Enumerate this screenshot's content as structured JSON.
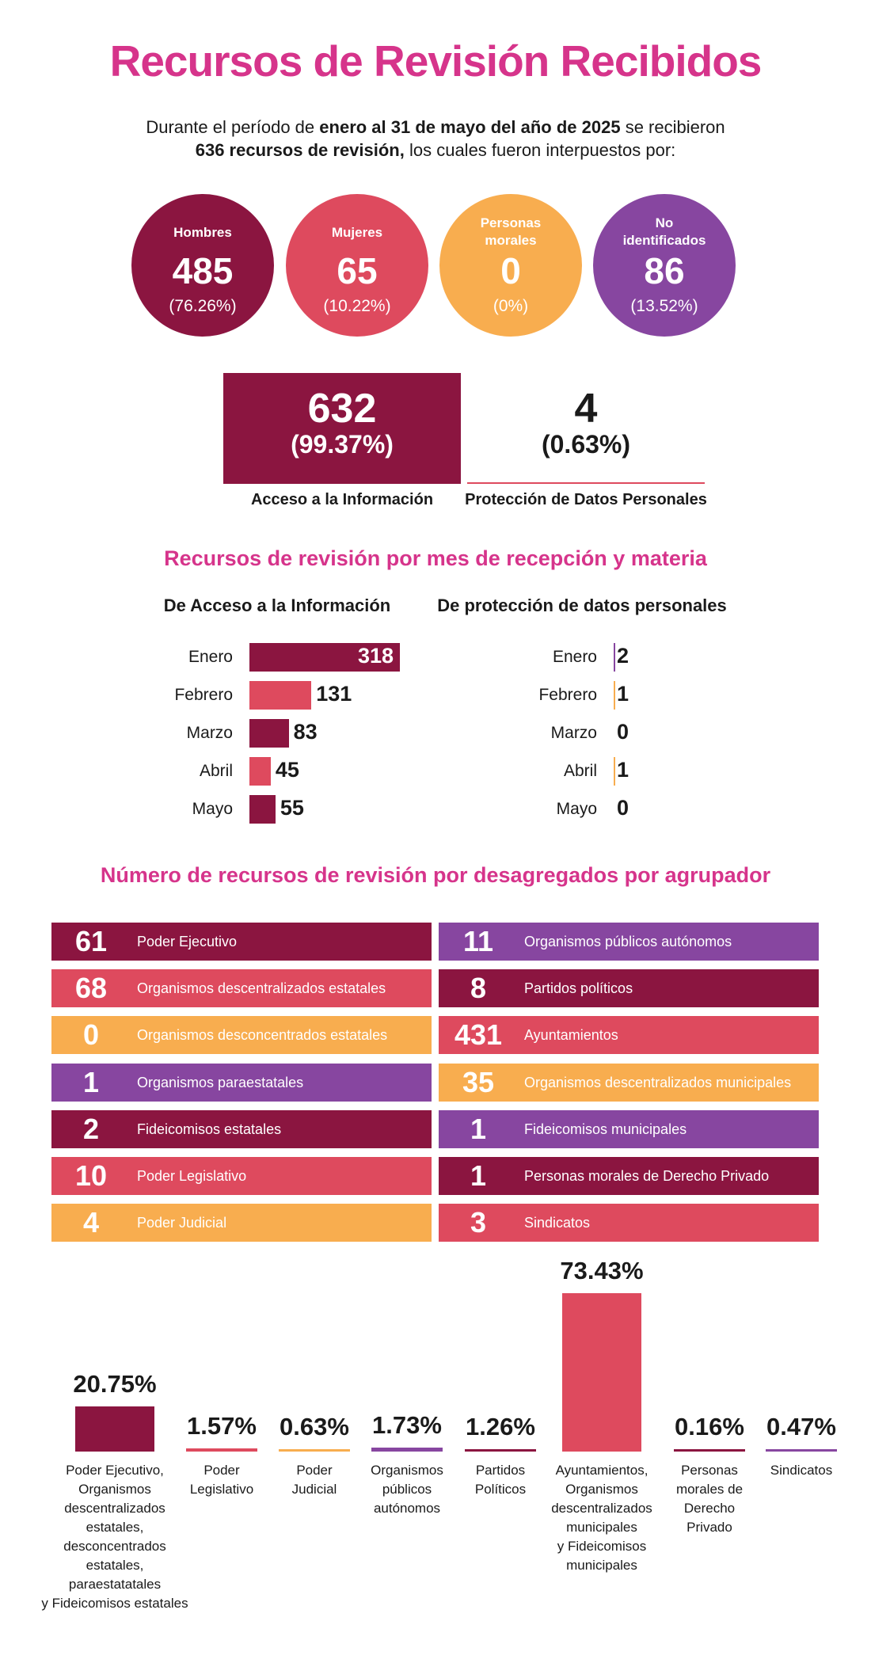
{
  "title": "Recursos de Revisión Recibidos",
  "intro": {
    "p1": "Durante el período de ",
    "b1": "enero al 31 de mayo del año de 2025",
    "p2": " se recibieron",
    "b2": "636 recursos de revisión,",
    "p3": " los cuales fueron interpuestos por:"
  },
  "circles": [
    {
      "label": "Hombres",
      "value": "485",
      "pct": "(76.26%)",
      "color": "#8b1540"
    },
    {
      "label": "Mujeres",
      "value": "65",
      "pct": "(10.22%)",
      "color": "#de4a5e"
    },
    {
      "label": "Personas morales",
      "value": "0",
      "pct": "(0%)",
      "color": "#f8ad4f"
    },
    {
      "label": "No identificados",
      "value": "86",
      "pct": "(13.52%)",
      "color": "#8746a0"
    }
  ],
  "materia": {
    "acceso": {
      "value": "632",
      "pct": "(99.37%)",
      "label": "Acceso a la Información"
    },
    "proteccion": {
      "value": "4",
      "pct": "(0.63%)",
      "label": "Protección de Datos Personales"
    }
  },
  "mes_title": "Recursos de revisión por mes de recepción y materia",
  "mes_heads": {
    "acceso": "De Acceso a la Información",
    "proteccion": "De protección de datos personales"
  },
  "agrupador_title": "Número de recursos de revisión por desagregados por agrupador",
  "colors": {
    "wine": "#8b1540",
    "coral": "#de4a5e",
    "orange": "#f8ad4f",
    "purple": "#8746a0",
    "pink": "#d6348b"
  },
  "chart_data": [
    {
      "type": "bar",
      "title": "De Acceso a la Información",
      "categories": [
        "Enero",
        "Febrero",
        "Marzo",
        "Abril",
        "Mayo"
      ],
      "values": [
        318,
        131,
        83,
        45,
        55
      ]
    },
    {
      "type": "bar",
      "title": "De protección de datos personales",
      "categories": [
        "Enero",
        "Febrero",
        "Marzo",
        "Abril",
        "Mayo"
      ],
      "values": [
        2,
        1,
        0,
        1,
        0
      ]
    },
    {
      "type": "table",
      "rows_left": [
        {
          "value": "61",
          "label": "Poder Ejecutivo",
          "color": "#8b1540"
        },
        {
          "value": "68",
          "label": "Organismos descentralizados estatales",
          "color": "#de4a5e"
        },
        {
          "value": "0",
          "label": "Organismos desconcentrados estatales",
          "color": "#f8ad4f"
        },
        {
          "value": "1",
          "label": "Organismos paraestatales",
          "color": "#8746a0"
        },
        {
          "value": "2",
          "label": "Fideicomisos estatales",
          "color": "#8b1540"
        },
        {
          "value": "10",
          "label": "Poder Legislativo",
          "color": "#de4a5e"
        },
        {
          "value": "4",
          "label": "Poder Judicial",
          "color": "#f8ad4f"
        }
      ],
      "rows_right": [
        {
          "value": "11",
          "label": "Organismos públicos autónomos",
          "color": "#8746a0"
        },
        {
          "value": "8",
          "label": "Partidos políticos",
          "color": "#8b1540"
        },
        {
          "value": "431",
          "label": "Ayuntamientos",
          "color": "#de4a5e"
        },
        {
          "value": "35",
          "label": "Organismos descentralizados municipales",
          "color": "#f8ad4f"
        },
        {
          "value": "1",
          "label": "Fideicomisos municipales",
          "color": "#8746a0"
        },
        {
          "value": "1",
          "label": "Personas morales de Derecho Privado",
          "color": "#8b1540"
        },
        {
          "value": "3",
          "label": "Sindicatos",
          "color": "#de4a5e"
        }
      ]
    },
    {
      "type": "bar",
      "categories": [
        "Poder Ejecutivo, Organismos descentralizados estatales, desconcentrados estatales, paraestatatales y Fideicomisos estatales",
        "Poder Legislativo",
        "Poder Judicial",
        "Organismos públicos autónomos",
        "Partidos Políticos",
        "Ayuntamientos, Organismos descentralizados municipales y Fideicomisos municipales",
        "Personas morales de Derecho Privado",
        "Sindicatos"
      ],
      "values": [
        20.75,
        1.57,
        0.63,
        1.73,
        1.26,
        73.43,
        0.16,
        0.47
      ],
      "labels": [
        "20.75%",
        "1.57%",
        "0.63%",
        "1.73%",
        "1.26%",
        "73.43%",
        "0.16%",
        "0.47%"
      ],
      "colors": [
        "#8b1540",
        "#de4a5e",
        "#f8ad4f",
        "#8746a0",
        "#8b1540",
        "#de4a5e",
        "#8b1540",
        "#8746a0"
      ],
      "category_lines": [
        [
          "Poder Ejecutivo,",
          "Organismos",
          "descentralizados",
          "estatales,",
          "desconcentrados",
          "estatales,",
          "paraestatatales",
          "y Fideicomisos estatales"
        ],
        [
          "Poder",
          "Legislativo"
        ],
        [
          "Poder",
          "Judicial"
        ],
        [
          "Organismos",
          "públicos",
          "autónomos"
        ],
        [
          "Partidos",
          "Políticos"
        ],
        [
          "Ayuntamientos,",
          "Organismos",
          "descentralizados",
          "municipales",
          "y Fideicomisos",
          "municipales"
        ],
        [
          "Personas",
          "morales de",
          "Derecho",
          "Privado"
        ],
        [
          "Sindicatos"
        ]
      ]
    }
  ]
}
